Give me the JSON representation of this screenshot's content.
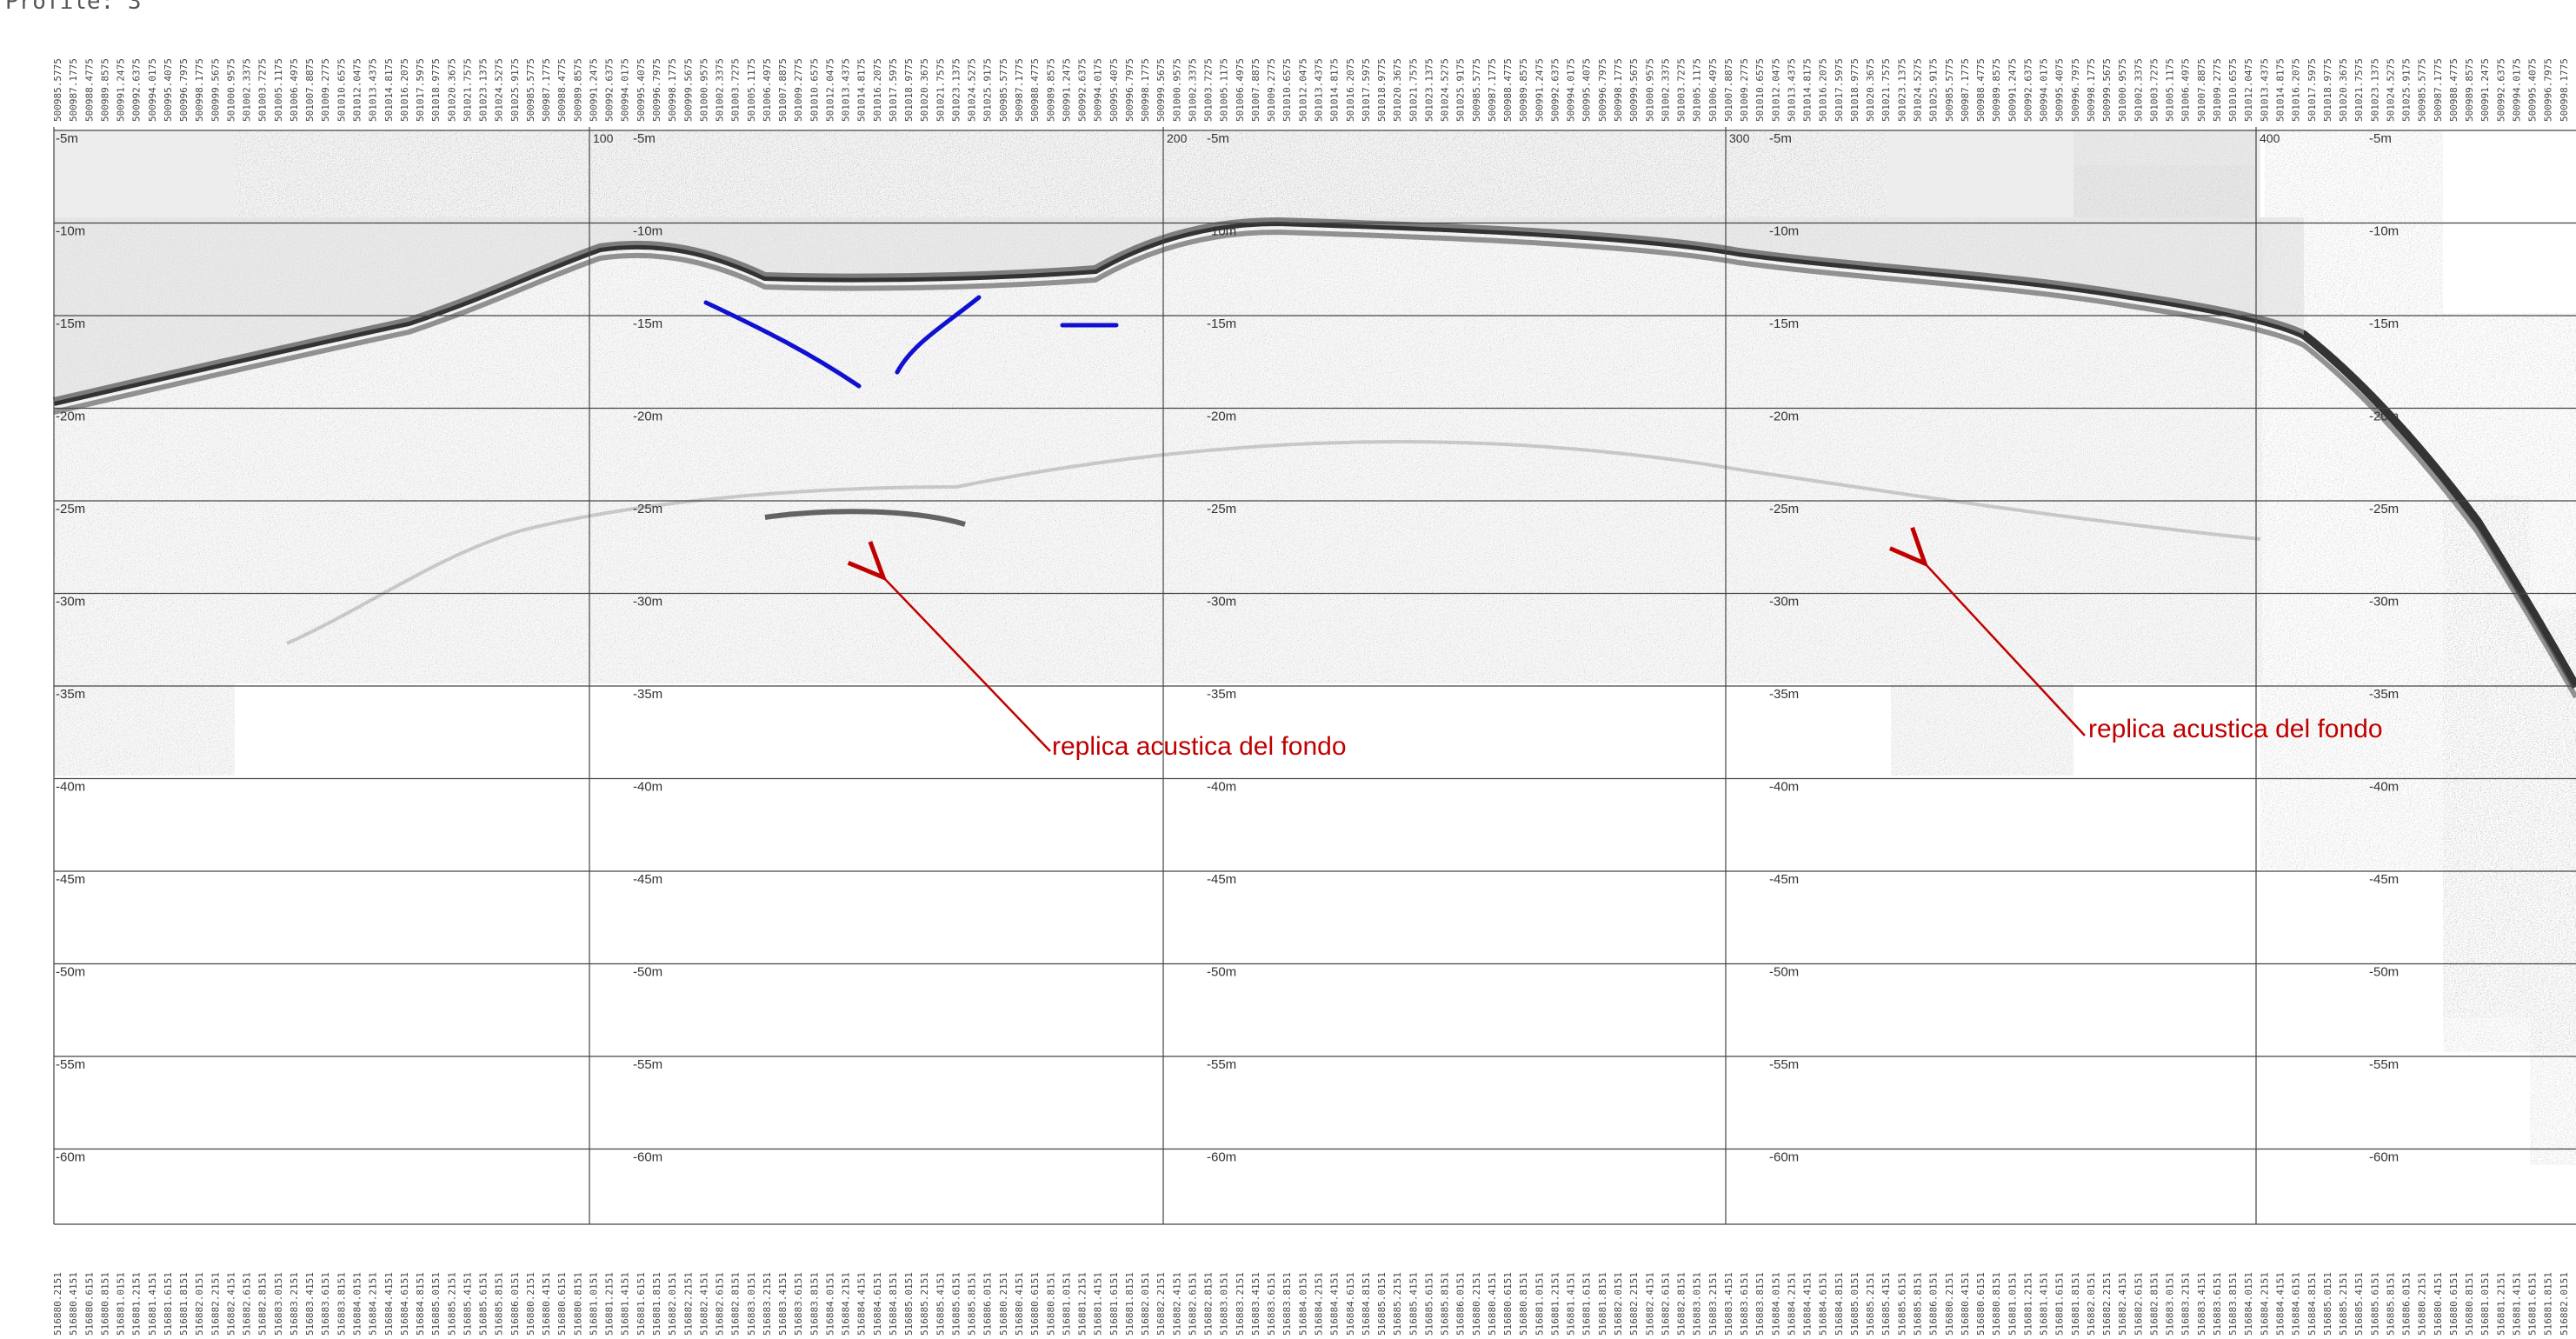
{
  "profile_title": "Profile: 3",
  "depth_labels": [
    "-5m",
    "-10m",
    "-15m",
    "-20m",
    "-25m",
    "-30m",
    "-35m",
    "-40m",
    "-45m",
    "-50m",
    "-55m",
    "-60m"
  ],
  "distance_labels": [
    "100",
    "200",
    "300",
    "400"
  ],
  "annotations": [
    {
      "text": "replica acustica del fondo"
    },
    {
      "text": "replica acustica del fondo"
    }
  ],
  "coordinates_top": [
    "500985.5775",
    "500987.1775",
    "500988.4775",
    "500989.8575",
    "500991.2475",
    "500992.6375",
    "500994.0175",
    "500995.4075",
    "500996.7975",
    "500998.1775",
    "500999.5675",
    "501000.9575",
    "501002.3375",
    "501003.7275",
    "501005.1175",
    "501006.4975",
    "501007.8875",
    "501009.2775",
    "501010.6575",
    "501012.0475",
    "501013.4375",
    "501014.8175",
    "501016.2075",
    "501017.5975",
    "501018.9775",
    "501020.3675",
    "501021.7575",
    "501023.1375",
    "501024.5275",
    "501025.9175"
  ],
  "coordinates_bottom": [
    "516880.2151",
    "516880.4151",
    "516880.6151",
    "516880.8151",
    "516881.0151",
    "516881.2151",
    "516881.4151",
    "516881.6151",
    "516881.8151",
    "516882.0151",
    "516882.2151",
    "516882.4151",
    "516882.6151",
    "516882.8151",
    "516883.0151",
    "516883.2151",
    "516883.4151",
    "516883.6151",
    "516883.8151",
    "516884.0151",
    "516884.2151",
    "516884.4151",
    "516884.6151",
    "516884.8151",
    "516885.0151",
    "516885.2151",
    "516885.4151",
    "516885.6151",
    "516885.8151",
    "516886.0151"
  ],
  "colors": {
    "grid": "#444444",
    "seismic_dark": "#2a2a2a",
    "seismic_mid": "#8a8a8a",
    "seismic_light": "#c9c9c9",
    "annotation": "#c00000",
    "interpretation": "#1010d0"
  }
}
